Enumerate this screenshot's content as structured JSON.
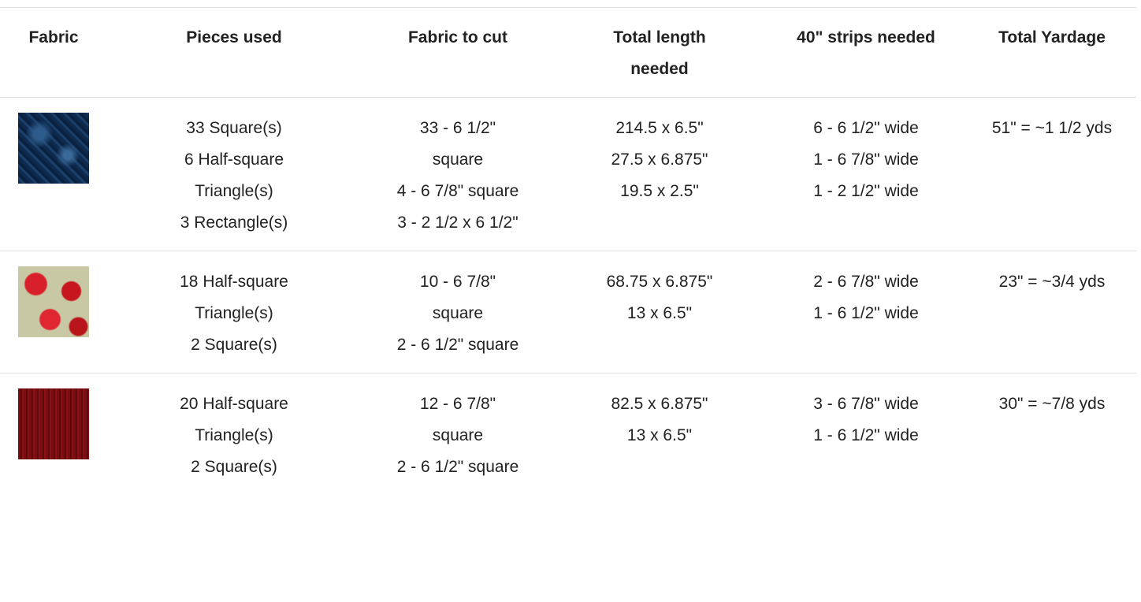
{
  "header": [
    "Fabric",
    "Pieces used",
    "Fabric to cut",
    "Total length needed",
    "40\" strips needed",
    "Total Yardage"
  ],
  "rows": [
    {
      "pieces_used": [
        "33 Square(s)",
        "6 Half-square Triangle(s)",
        "3 Rectangle(s)"
      ],
      "fabric_to_cut": [
        "33 - 6 1/2\" square",
        "4 - 6 7/8\" square",
        "3 - 2 1/2 x 6 1/2\""
      ],
      "total_length": [
        "214.5 x 6.5\"",
        "27.5 x 6.875\"",
        "19.5 x 2.5\""
      ],
      "strips": [
        "6 - 6 1/2\" wide",
        "1 - 6 7/8\" wide",
        "1 - 2 1/2\" wide"
      ],
      "yardage": [
        "51\" = ~1 1/2 yds"
      ]
    },
    {
      "pieces_used": [
        "18 Half-square Triangle(s)",
        "2 Square(s)"
      ],
      "fabric_to_cut": [
        "10 - 6 7/8\" square",
        "2 - 6 1/2\" square"
      ],
      "total_length": [
        "68.75 x 6.875\"",
        "13 x 6.5\""
      ],
      "strips": [
        "2 - 6 7/8\" wide",
        "1 - 6 1/2\" wide"
      ],
      "yardage": [
        "23\" = ~3/4 yds"
      ]
    },
    {
      "pieces_used": [
        "20 Half-square Triangle(s)",
        "2 Square(s)"
      ],
      "fabric_to_cut": [
        "12 - 6 7/8\" square",
        "2 - 6 1/2\" square"
      ],
      "total_length": [
        "82.5 x 6.875\"",
        "13 x 6.5\""
      ],
      "strips": [
        "3 - 6 7/8\" wide",
        "1 - 6 1/2\" wide"
      ],
      "yardage": [
        "30\" = ~7/8 yds"
      ]
    }
  ]
}
